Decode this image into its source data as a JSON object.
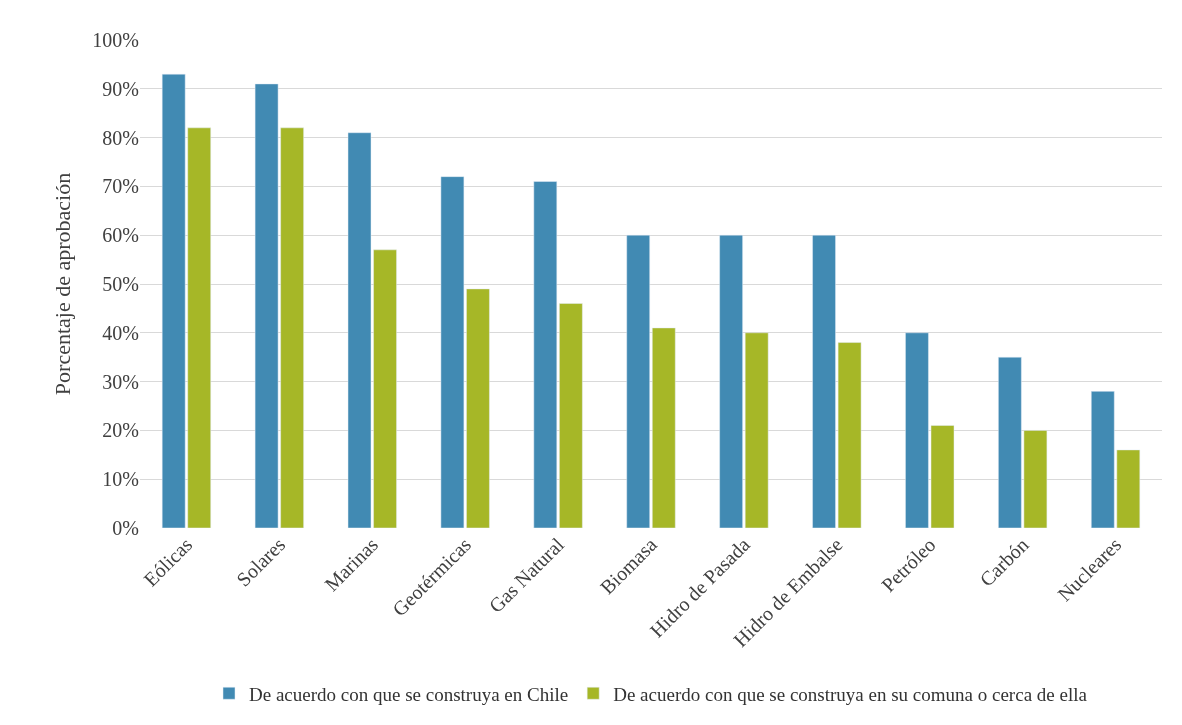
{
  "chart_data": {
    "type": "bar",
    "ylabel": "Porcentaje de aprobación",
    "categories": [
      "Eólicas",
      "Solares",
      "Marinas",
      "Geotérmicas",
      "Gas Natural",
      "Biomasa",
      "Hidro de Pasada",
      "Hidro de Embalse",
      "Petróleo",
      "Carbón",
      "Nucleares"
    ],
    "series": [
      {
        "name": "De acuerdo con que se construya en Chile",
        "color": "#418ab3",
        "values": [
          93,
          91,
          81,
          72,
          71,
          60,
          60,
          60,
          40,
          35,
          28
        ]
      },
      {
        "name": "De acuerdo con que se construya en su comuna o cerca de ella",
        "color": "#a6b727",
        "values": [
          82,
          82,
          57,
          49,
          46,
          41,
          40,
          38,
          21,
          20,
          16
        ]
      }
    ],
    "ylim": [
      0,
      100
    ],
    "yticks": [
      {
        "value": 0,
        "label": "0%"
      },
      {
        "value": 10,
        "label": "10%"
      },
      {
        "value": 20,
        "label": "20%"
      },
      {
        "value": 30,
        "label": "30%"
      },
      {
        "value": 40,
        "label": "40%"
      },
      {
        "value": 50,
        "label": "50%"
      },
      {
        "value": 60,
        "label": "60%"
      },
      {
        "value": 70,
        "label": "70%"
      },
      {
        "value": 80,
        "label": "80%"
      },
      {
        "value": 90,
        "label": "90%"
      },
      {
        "value": 100,
        "label": "100%"
      }
    ],
    "grid": "y",
    "legend": "bottom"
  }
}
